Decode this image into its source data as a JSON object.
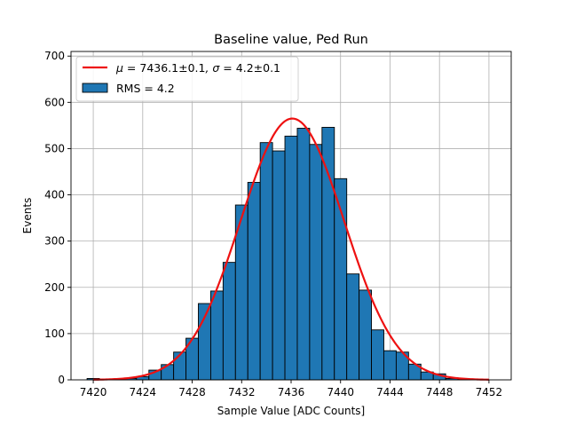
{
  "chart_data": {
    "type": "bar",
    "title": "Baseline value, Ped Run",
    "xlabel": "Sample Value [ADC Counts]",
    "ylabel": "Events",
    "xlim": [
      7418.2,
      7453.8
    ],
    "ylim": [
      0,
      710
    ],
    "x_ticks": [
      7420,
      7424,
      7428,
      7432,
      7436,
      7440,
      7444,
      7448,
      7452
    ],
    "y_ticks": [
      0,
      100,
      200,
      300,
      400,
      500,
      600,
      700
    ],
    "grid": true,
    "legend_position": "top-left",
    "bin_width": 1,
    "bins": [
      {
        "x": 7420,
        "count": 3
      },
      {
        "x": 7421,
        "count": 0
      },
      {
        "x": 7422,
        "count": 1
      },
      {
        "x": 7423,
        "count": 3
      },
      {
        "x": 7424,
        "count": 7
      },
      {
        "x": 7425,
        "count": 21
      },
      {
        "x": 7426,
        "count": 33
      },
      {
        "x": 7427,
        "count": 60
      },
      {
        "x": 7428,
        "count": 90
      },
      {
        "x": 7429,
        "count": 165
      },
      {
        "x": 7430,
        "count": 192
      },
      {
        "x": 7431,
        "count": 254
      },
      {
        "x": 7432,
        "count": 378
      },
      {
        "x": 7433,
        "count": 427
      },
      {
        "x": 7434,
        "count": 513
      },
      {
        "x": 7435,
        "count": 495
      },
      {
        "x": 7436,
        "count": 527
      },
      {
        "x": 7437,
        "count": 544
      },
      {
        "x": 7438,
        "count": 509
      },
      {
        "x": 7439,
        "count": 546
      },
      {
        "x": 7440,
        "count": 435
      },
      {
        "x": 7441,
        "count": 229
      },
      {
        "x": 7442,
        "count": 194
      },
      {
        "x": 7443,
        "count": 108
      },
      {
        "x": 7444,
        "count": 63
      },
      {
        "x": 7445,
        "count": 60
      },
      {
        "x": 7446,
        "count": 34
      },
      {
        "x": 7447,
        "count": 17
      },
      {
        "x": 7448,
        "count": 13
      },
      {
        "x": 7449,
        "count": 3
      },
      {
        "x": 7450,
        "count": 1
      }
    ],
    "fit": {
      "mu": 7436.1,
      "sigma": 4.2,
      "amplitude": 565,
      "x_range": [
        7420,
        7452
      ]
    },
    "legend": [
      {
        "mu_prefix": "μ = ",
        "mu_value": "7436.1±0.1",
        "sigma_prefix": ", σ = ",
        "sigma_value": "4.2±0.1"
      },
      {
        "label": "RMS = 4.2"
      }
    ],
    "colors": {
      "bar_fill": "#1f77b4",
      "bar_edge": "#000000",
      "fit_line": "#ee1111",
      "grid": "#b0b0b0",
      "axis": "#000000"
    }
  }
}
